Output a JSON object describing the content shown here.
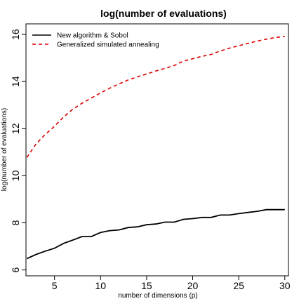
{
  "chart_data": {
    "type": "line",
    "title": "log(number of evaluations)",
    "xlabel": "number of dimensions (p)",
    "ylabel": "log(number of evaluations)",
    "xlim": [
      1.9,
      30.4
    ],
    "ylim": [
      5.75,
      16.45
    ],
    "xticks": [
      5,
      10,
      15,
      20,
      25,
      30
    ],
    "yticks": [
      6,
      8,
      10,
      12,
      14,
      16
    ],
    "legend_position": "top-left",
    "x": [
      2,
      3,
      4,
      5,
      6,
      7,
      8,
      9,
      10,
      11,
      12,
      13,
      14,
      15,
      16,
      17,
      18,
      19,
      20,
      21,
      22,
      23,
      24,
      25,
      26,
      27,
      28,
      29,
      30
    ],
    "series": [
      {
        "name": "New algorithm & Sobol",
        "color": "#000000",
        "dash": "solid",
        "values": [
          6.48,
          6.66,
          6.8,
          6.92,
          7.13,
          7.27,
          7.42,
          7.42,
          7.59,
          7.67,
          7.7,
          7.8,
          7.83,
          7.92,
          7.95,
          8.03,
          8.03,
          8.15,
          8.18,
          8.23,
          8.23,
          8.33,
          8.33,
          8.39,
          8.44,
          8.49,
          8.56,
          8.56,
          8.56
        ]
      },
      {
        "name": "Generalized simulated annealing",
        "color": "#dd0000",
        "dash": "dashed",
        "values": [
          10.78,
          11.35,
          11.76,
          12.1,
          12.5,
          12.83,
          13.08,
          13.3,
          13.52,
          13.72,
          13.9,
          14.07,
          14.2,
          14.32,
          14.45,
          14.56,
          14.68,
          14.87,
          14.97,
          15.07,
          15.15,
          15.3,
          15.42,
          15.52,
          15.62,
          15.72,
          15.8,
          15.87,
          15.92
        ]
      }
    ]
  }
}
